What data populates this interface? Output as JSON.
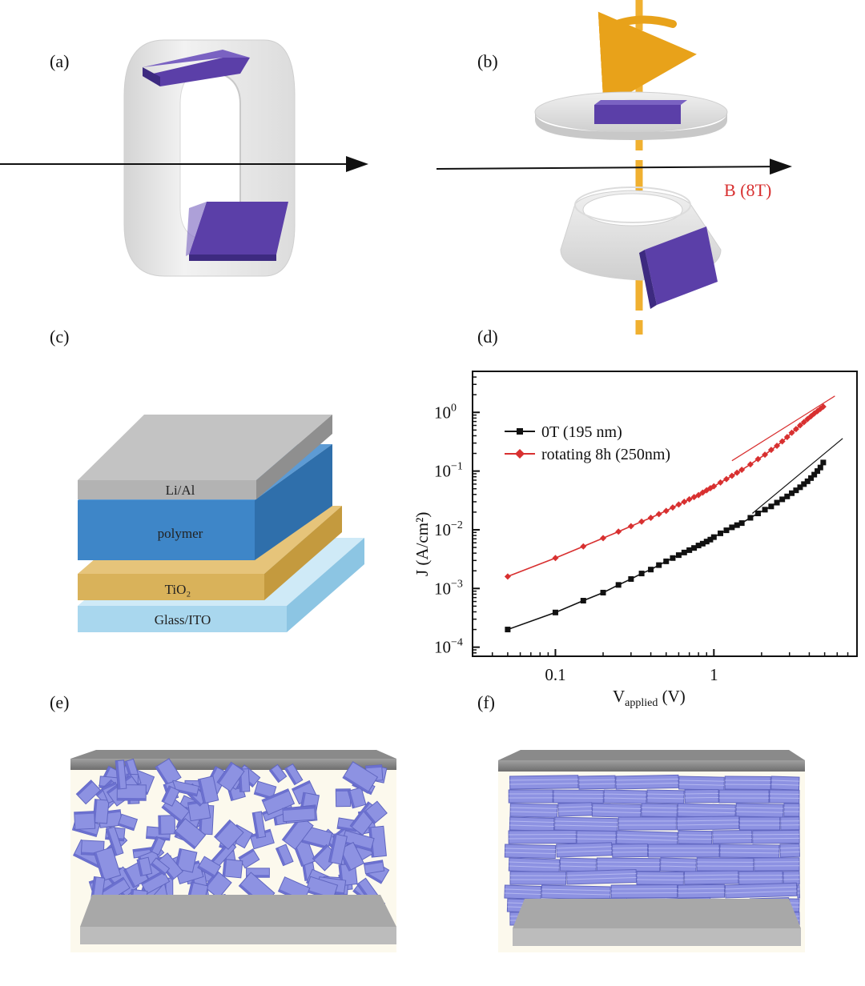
{
  "panels": {
    "a": {
      "label": "(a)"
    },
    "b": {
      "label": "(b)",
      "field_label": "B (8T)"
    },
    "c": {
      "label": "(c)",
      "layers": [
        "Li/Al",
        "polymer",
        "TiO₂",
        "Glass/ITO"
      ]
    },
    "d": {
      "label": "(d)"
    },
    "e": {
      "label": "(e)"
    },
    "f": {
      "label": "(f)"
    }
  },
  "colors": {
    "platelet": "#5b3fa8",
    "ring": "#e6e6e6",
    "rotation_axis": "#f0b030",
    "series_black": "#111111",
    "series_red": "#d83030",
    "glass": "#a9d7ee",
    "tio2": "#d9b25a",
    "polymer": "#3e86c8",
    "lial": "#b3b3b3",
    "crystal": "#8a8fe0"
  },
  "chart_data": {
    "type": "scatter",
    "xlabel_main": "V",
    "xlabel_sub": "applied",
    "xlabel_unit": " (V)",
    "ylabel": "J (A/cm²)",
    "x_scale": "log",
    "y_scale": "log",
    "xlim": [
      0.03,
      8
    ],
    "ylim": [
      7e-05,
      5
    ],
    "x_ticks": [
      {
        "value": 0.1,
        "label": "0.1"
      },
      {
        "value": 1,
        "label": "1"
      }
    ],
    "y_ticks": [
      {
        "value": 0.0001,
        "base": "10",
        "exp": "−4"
      },
      {
        "value": 0.001,
        "base": "10",
        "exp": "−3"
      },
      {
        "value": 0.01,
        "base": "10",
        "exp": "−2"
      },
      {
        "value": 0.1,
        "base": "10",
        "exp": "−1"
      },
      {
        "value": 1,
        "base": "10",
        "exp": "0"
      }
    ],
    "legend_position": "top-left",
    "series": [
      {
        "name": "0T (195 nm)",
        "color": "#111111",
        "marker": "square",
        "x": [
          0.05,
          0.1,
          0.15,
          0.2,
          0.25,
          0.3,
          0.35,
          0.4,
          0.45,
          0.5,
          0.55,
          0.6,
          0.65,
          0.7,
          0.75,
          0.8,
          0.85,
          0.9,
          0.95,
          1.0,
          1.1,
          1.2,
          1.3,
          1.4,
          1.5,
          1.7,
          1.9,
          2.1,
          2.3,
          2.5,
          2.7,
          2.9,
          3.1,
          3.3,
          3.5,
          3.7,
          3.9,
          4.1,
          4.3,
          4.5,
          4.7,
          4.9
        ],
        "y": [
          0.0002,
          0.00039,
          0.00062,
          0.00085,
          0.00115,
          0.00145,
          0.0018,
          0.0021,
          0.0025,
          0.0029,
          0.0033,
          0.0037,
          0.0041,
          0.0045,
          0.0049,
          0.0054,
          0.0058,
          0.0063,
          0.0068,
          0.0075,
          0.0087,
          0.0098,
          0.011,
          0.012,
          0.013,
          0.016,
          0.019,
          0.022,
          0.025,
          0.029,
          0.033,
          0.037,
          0.042,
          0.047,
          0.053,
          0.06,
          0.067,
          0.076,
          0.087,
          0.1,
          0.115,
          0.14
        ]
      },
      {
        "name": "rotating 8h (250nm)",
        "color": "#d83030",
        "marker": "diamond",
        "x": [
          0.05,
          0.1,
          0.15,
          0.2,
          0.25,
          0.3,
          0.35,
          0.4,
          0.45,
          0.5,
          0.55,
          0.6,
          0.65,
          0.7,
          0.75,
          0.8,
          0.85,
          0.9,
          0.95,
          1.0,
          1.1,
          1.2,
          1.3,
          1.4,
          1.5,
          1.7,
          1.9,
          2.1,
          2.3,
          2.5,
          2.7,
          2.9,
          3.1,
          3.3,
          3.5,
          3.7,
          3.9,
          4.1,
          4.3,
          4.5,
          4.7,
          4.9
        ],
        "y": [
          0.0016,
          0.0033,
          0.0052,
          0.0072,
          0.0093,
          0.0115,
          0.0138,
          0.016,
          0.0185,
          0.021,
          0.024,
          0.027,
          0.03,
          0.033,
          0.036,
          0.039,
          0.043,
          0.047,
          0.051,
          0.055,
          0.064,
          0.073,
          0.083,
          0.094,
          0.105,
          0.13,
          0.16,
          0.19,
          0.23,
          0.27,
          0.32,
          0.38,
          0.45,
          0.52,
          0.6,
          0.68,
          0.77,
          0.86,
          0.96,
          1.05,
          1.15,
          1.25
        ]
      }
    ],
    "fit_lines": [
      {
        "color": "#111111",
        "x": [
          1.75,
          6.5
        ],
        "y": [
          0.019,
          0.36
        ]
      },
      {
        "color": "#d83030",
        "x": [
          1.3,
          5.8
        ],
        "y": [
          0.15,
          1.9
        ]
      }
    ]
  }
}
